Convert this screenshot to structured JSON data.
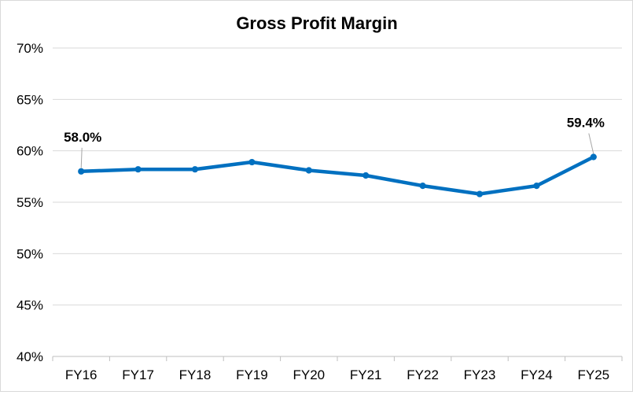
{
  "chart_data": {
    "type": "line",
    "title": "Gross Profit Margin",
    "xlabel": "",
    "ylabel": "",
    "categories": [
      "FY16",
      "FY17",
      "FY18",
      "FY19",
      "FY20",
      "FY21",
      "FY22",
      "FY23",
      "FY24",
      "FY25"
    ],
    "series": [
      {
        "values": [
          58.0,
          58.2,
          58.2,
          58.9,
          58.1,
          57.6,
          56.6,
          55.8,
          56.6,
          59.4
        ],
        "color": "#0070C0"
      }
    ],
    "ylim": [
      40,
      70
    ],
    "yticks": [
      40,
      45,
      50,
      55,
      60,
      65,
      70
    ],
    "ytick_labels": [
      "40%",
      "45%",
      "50%",
      "55%",
      "60%",
      "65%",
      "70%"
    ],
    "data_labels": [
      {
        "index": 0,
        "text": "58.0%"
      },
      {
        "index": 9,
        "text": "59.4%"
      }
    ],
    "grid": true,
    "legend": "none",
    "gridline_color": "#d9d9d9",
    "axis_color": "#bfbfbf"
  }
}
